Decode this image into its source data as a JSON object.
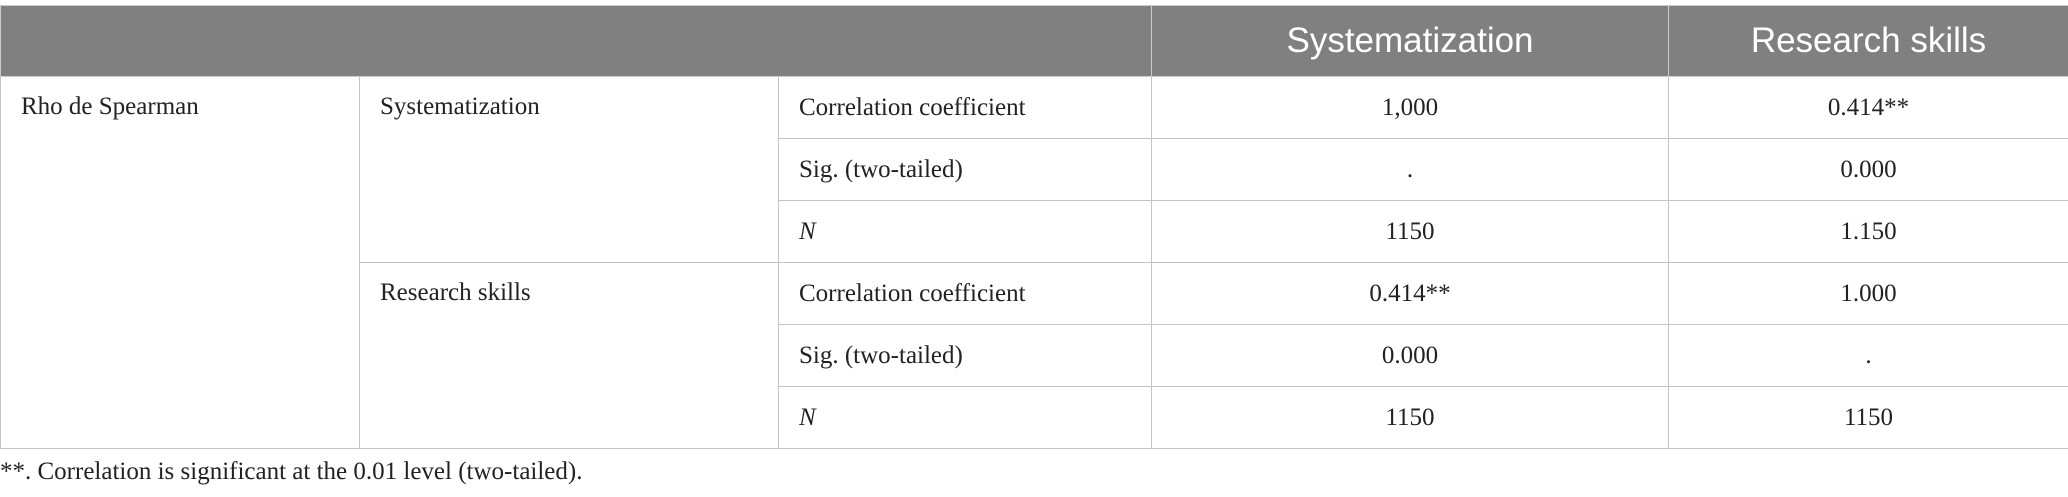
{
  "table": {
    "header": [
      "Systematization",
      "Research skills"
    ],
    "group": "Rho de Spearman",
    "blocks": [
      {
        "variable": "Systematization",
        "rows": [
          [
            "Correlation coefficient",
            "1,000",
            "0.414**"
          ],
          [
            "Sig. (two-tailed)",
            ".",
            "0.000"
          ],
          [
            "N",
            "1150",
            "1.150"
          ]
        ]
      },
      {
        "variable": "Research skills",
        "rows": [
          [
            "Correlation coefficient",
            "0.414**",
            "1.000"
          ],
          [
            "Sig. (two-tailed)",
            "0.000",
            "."
          ],
          [
            "N",
            "1150",
            "1150"
          ]
        ]
      }
    ]
  },
  "footnote": "**. Correlation is significant at the 0.01 level (two-tailed)."
}
